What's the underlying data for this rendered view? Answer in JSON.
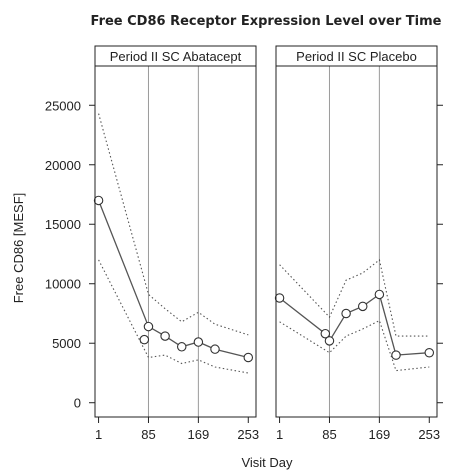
{
  "chart_data": {
    "type": "line",
    "title": "Free CD86 Receptor Expression Level over Time",
    "xlabel": "Visit Day",
    "ylabel": "Free CD86 [MESF]",
    "xlim": [
      -5,
      266
    ],
    "ylim": [
      -1200,
      28300
    ],
    "xticks": [
      1,
      85,
      169,
      253
    ],
    "yticks": [
      0,
      5000,
      10000,
      15000,
      20000,
      25000
    ],
    "reference_lines_x": [
      85,
      169
    ],
    "panels": [
      {
        "strip": "Period II SC Abatacept",
        "mean": {
          "x": [
            1,
            85,
            113,
            141,
            169,
            197,
            253
          ],
          "y": [
            17000,
            6400,
            5600,
            4700,
            5100,
            4500,
            3800
          ]
        },
        "lower": {
          "x": [
            1,
            85,
            113,
            141,
            169,
            197,
            253
          ],
          "y": [
            12000,
            3800,
            4000,
            3300,
            3600,
            3000,
            2500
          ]
        },
        "upper": {
          "x": [
            1,
            85,
            113,
            141,
            169,
            197,
            253
          ],
          "y": [
            24300,
            9100,
            7900,
            6800,
            7600,
            6600,
            5700
          ]
        },
        "extra_points": [
          {
            "x": 78,
            "y": 5300
          }
        ]
      },
      {
        "strip": "Period II SC Placebo",
        "mean": {
          "x": [
            1,
            78,
            85,
            113,
            141,
            169,
            197,
            253
          ],
          "y": [
            8800,
            5800,
            5200,
            7500,
            8100,
            9100,
            4000,
            4200
          ]
        },
        "lower": {
          "x": [
            1,
            85,
            113,
            141,
            169,
            197,
            253
          ],
          "y": [
            6800,
            4200,
            5600,
            6200,
            6900,
            2700,
            3000
          ]
        },
        "upper": {
          "x": [
            1,
            85,
            113,
            141,
            169,
            197,
            253
          ],
          "y": [
            11600,
            7200,
            10300,
            10900,
            12000,
            5600,
            5600
          ]
        },
        "extra_points": []
      }
    ]
  }
}
